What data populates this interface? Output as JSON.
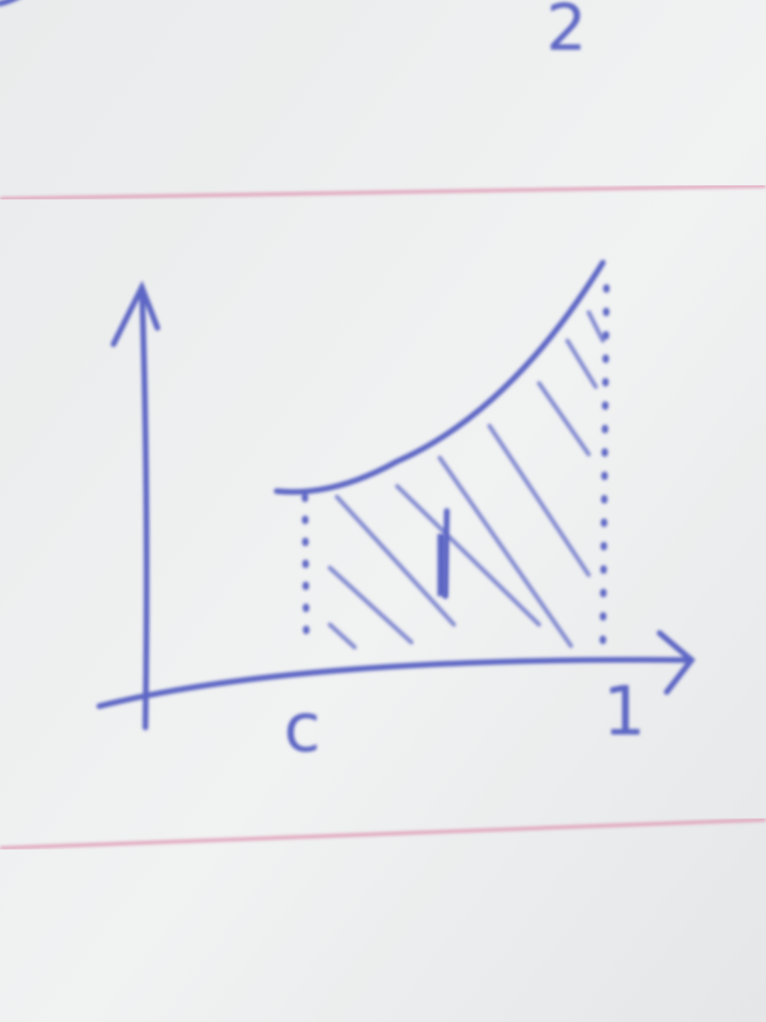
{
  "corner_note": "2",
  "labels": {
    "x_start": "c",
    "x_end": "1",
    "area": "I"
  }
}
